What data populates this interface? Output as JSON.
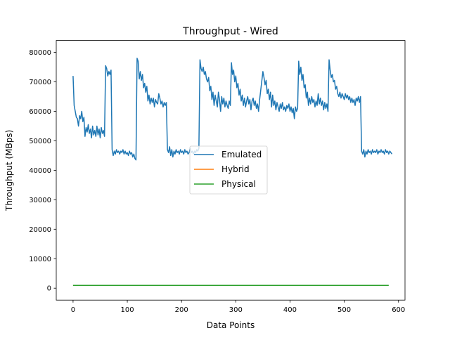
{
  "chart_data": {
    "type": "line",
    "title": "Throughput - Wired",
    "xlabel": "Data Points",
    "ylabel": "Throughput (MBps)",
    "xlim": [
      -31,
      612
    ],
    "ylim": [
      -4050,
      84050
    ],
    "xticks": [
      0,
      100,
      200,
      300,
      400,
      500,
      600
    ],
    "yticks": [
      0,
      10000,
      20000,
      30000,
      40000,
      50000,
      60000,
      70000,
      80000
    ],
    "grid": false,
    "legend_position": "center",
    "series": [
      {
        "name": "Emulated",
        "color": "#1f77b4",
        "points": [
          [
            0,
            72000
          ],
          [
            2,
            62000
          ],
          [
            4,
            60000
          ],
          [
            6,
            58000
          ],
          [
            8,
            57500
          ],
          [
            10,
            55000
          ],
          [
            12,
            58500
          ],
          [
            14,
            57500
          ],
          [
            16,
            60000
          ],
          [
            18,
            56500
          ],
          [
            20,
            58000
          ],
          [
            22,
            51500
          ],
          [
            24,
            54500
          ],
          [
            26,
            53000
          ],
          [
            28,
            55500
          ],
          [
            30,
            52500
          ],
          [
            32,
            54000
          ],
          [
            34,
            51000
          ],
          [
            36,
            55000
          ],
          [
            38,
            52000
          ],
          [
            40,
            53500
          ],
          [
            42,
            51500
          ],
          [
            44,
            55000
          ],
          [
            46,
            52000
          ],
          [
            48,
            54000
          ],
          [
            50,
            51000
          ],
          [
            52,
            54500
          ],
          [
            54,
            52500
          ],
          [
            56,
            53500
          ],
          [
            58,
            51500
          ],
          [
            60,
            75500
          ],
          [
            62,
            74500
          ],
          [
            64,
            72000
          ],
          [
            66,
            73500
          ],
          [
            68,
            72500
          ],
          [
            70,
            74000
          ],
          [
            72,
            47000
          ],
          [
            74,
            45000
          ],
          [
            76,
            46500
          ],
          [
            78,
            45500
          ],
          [
            80,
            47000
          ],
          [
            82,
            46000
          ],
          [
            84,
            46500
          ],
          [
            86,
            45500
          ],
          [
            88,
            46500
          ],
          [
            90,
            46000
          ],
          [
            92,
            47000
          ],
          [
            94,
            45500
          ],
          [
            96,
            46500
          ],
          [
            98,
            45500
          ],
          [
            100,
            46000
          ],
          [
            102,
            45000
          ],
          [
            104,
            46500
          ],
          [
            106,
            45500
          ],
          [
            108,
            46000
          ],
          [
            110,
            44500
          ],
          [
            112,
            45500
          ],
          [
            114,
            44000
          ],
          [
            116,
            43500
          ],
          [
            118,
            78000
          ],
          [
            120,
            77000
          ],
          [
            122,
            71000
          ],
          [
            124,
            73500
          ],
          [
            126,
            70500
          ],
          [
            128,
            72500
          ],
          [
            130,
            68000
          ],
          [
            132,
            69500
          ],
          [
            134,
            66500
          ],
          [
            136,
            68500
          ],
          [
            138,
            63500
          ],
          [
            140,
            65500
          ],
          [
            142,
            62500
          ],
          [
            144,
            64500
          ],
          [
            146,
            63000
          ],
          [
            148,
            64500
          ],
          [
            150,
            61500
          ],
          [
            152,
            64000
          ],
          [
            154,
            63000
          ],
          [
            156,
            62500
          ],
          [
            158,
            66000
          ],
          [
            160,
            64500
          ],
          [
            162,
            62500
          ],
          [
            164,
            63500
          ],
          [
            166,
            61500
          ],
          [
            168,
            63000
          ],
          [
            170,
            62000
          ],
          [
            172,
            63000
          ],
          [
            174,
            47000
          ],
          [
            176,
            46000
          ],
          [
            178,
            48000
          ],
          [
            180,
            45000
          ],
          [
            182,
            47000
          ],
          [
            184,
            44500
          ],
          [
            186,
            46500
          ],
          [
            188,
            45500
          ],
          [
            190,
            47000
          ],
          [
            192,
            46000
          ],
          [
            194,
            46500
          ],
          [
            196,
            45500
          ],
          [
            198,
            47000
          ],
          [
            200,
            46000
          ],
          [
            202,
            46500
          ],
          [
            204,
            45500
          ],
          [
            206,
            47000
          ],
          [
            208,
            46000
          ],
          [
            210,
            46500
          ],
          [
            212,
            45500
          ],
          [
            214,
            46000
          ],
          [
            216,
            47500
          ],
          [
            218,
            46000
          ],
          [
            220,
            46500
          ],
          [
            222,
            45500
          ],
          [
            224,
            46500
          ],
          [
            226,
            46000
          ],
          [
            228,
            47000
          ],
          [
            230,
            46500
          ],
          [
            232,
            47500
          ],
          [
            234,
            77500
          ],
          [
            236,
            74500
          ],
          [
            238,
            73500
          ],
          [
            240,
            75000
          ],
          [
            242,
            72500
          ],
          [
            244,
            73500
          ],
          [
            246,
            71000
          ],
          [
            248,
            70000
          ],
          [
            250,
            71500
          ],
          [
            252,
            67000
          ],
          [
            254,
            68500
          ],
          [
            256,
            64000
          ],
          [
            258,
            66500
          ],
          [
            260,
            62000
          ],
          [
            262,
            65500
          ],
          [
            264,
            63500
          ],
          [
            266,
            61500
          ],
          [
            268,
            66500
          ],
          [
            270,
            64000
          ],
          [
            272,
            60000
          ],
          [
            274,
            65000
          ],
          [
            276,
            62500
          ],
          [
            278,
            64500
          ],
          [
            280,
            61500
          ],
          [
            282,
            63500
          ],
          [
            284,
            62000
          ],
          [
            286,
            61000
          ],
          [
            288,
            63500
          ],
          [
            290,
            62000
          ],
          [
            292,
            76500
          ],
          [
            294,
            72500
          ],
          [
            296,
            74000
          ],
          [
            298,
            70000
          ],
          [
            300,
            72000
          ],
          [
            302,
            68000
          ],
          [
            304,
            69500
          ],
          [
            306,
            65500
          ],
          [
            308,
            67500
          ],
          [
            310,
            63500
          ],
          [
            312,
            65500
          ],
          [
            314,
            62000
          ],
          [
            316,
            64500
          ],
          [
            318,
            61500
          ],
          [
            320,
            63500
          ],
          [
            322,
            65000
          ],
          [
            324,
            62500
          ],
          [
            326,
            64000
          ],
          [
            328,
            60500
          ],
          [
            330,
            63500
          ],
          [
            332,
            64500
          ],
          [
            334,
            62000
          ],
          [
            336,
            63500
          ],
          [
            338,
            61000
          ],
          [
            340,
            62500
          ],
          [
            342,
            60000
          ],
          [
            344,
            64000
          ],
          [
            350,
            73500
          ],
          [
            352,
            71500
          ],
          [
            354,
            69000
          ],
          [
            356,
            70500
          ],
          [
            358,
            66000
          ],
          [
            360,
            67500
          ],
          [
            362,
            64000
          ],
          [
            364,
            66500
          ],
          [
            366,
            61500
          ],
          [
            368,
            65500
          ],
          [
            370,
            62000
          ],
          [
            372,
            63500
          ],
          [
            374,
            60500
          ],
          [
            376,
            63000
          ],
          [
            378,
            61500
          ],
          [
            380,
            60000
          ],
          [
            382,
            62500
          ],
          [
            384,
            61000
          ],
          [
            386,
            63000
          ],
          [
            388,
            60500
          ],
          [
            390,
            61500
          ],
          [
            392,
            60000
          ],
          [
            394,
            62000
          ],
          [
            396,
            61000
          ],
          [
            398,
            62500
          ],
          [
            400,
            60000
          ],
          [
            402,
            61500
          ],
          [
            404,
            59500
          ],
          [
            406,
            61000
          ],
          [
            408,
            57500
          ],
          [
            410,
            61500
          ],
          [
            412,
            60000
          ],
          [
            414,
            61000
          ],
          [
            416,
            77000
          ],
          [
            418,
            72500
          ],
          [
            420,
            75000
          ],
          [
            422,
            70500
          ],
          [
            424,
            72500
          ],
          [
            426,
            68000
          ],
          [
            428,
            69000
          ],
          [
            430,
            64500
          ],
          [
            432,
            66500
          ],
          [
            434,
            62000
          ],
          [
            436,
            64500
          ],
          [
            438,
            62500
          ],
          [
            440,
            65000
          ],
          [
            442,
            63000
          ],
          [
            444,
            64000
          ],
          [
            446,
            61500
          ],
          [
            448,
            63500
          ],
          [
            450,
            62000
          ],
          [
            452,
            66000
          ],
          [
            454,
            62500
          ],
          [
            456,
            64500
          ],
          [
            458,
            62000
          ],
          [
            460,
            63500
          ],
          [
            462,
            60500
          ],
          [
            464,
            63000
          ],
          [
            466,
            61000
          ],
          [
            468,
            62500
          ],
          [
            470,
            60000
          ],
          [
            472,
            77500
          ],
          [
            474,
            74000
          ],
          [
            476,
            71500
          ],
          [
            478,
            72500
          ],
          [
            480,
            70000
          ],
          [
            482,
            70500
          ],
          [
            484,
            67500
          ],
          [
            486,
            68500
          ],
          [
            488,
            66000
          ],
          [
            490,
            65000
          ],
          [
            492,
            66500
          ],
          [
            494,
            64500
          ],
          [
            496,
            66000
          ],
          [
            498,
            65000
          ],
          [
            500,
            64000
          ],
          [
            502,
            66000
          ],
          [
            504,
            64500
          ],
          [
            506,
            65500
          ],
          [
            508,
            64000
          ],
          [
            510,
            65000
          ],
          [
            512,
            63000
          ],
          [
            514,
            64500
          ],
          [
            516,
            63000
          ],
          [
            518,
            64000
          ],
          [
            520,
            62000
          ],
          [
            522,
            64500
          ],
          [
            524,
            63500
          ],
          [
            526,
            65000
          ],
          [
            528,
            63000
          ],
          [
            530,
            65000
          ],
          [
            532,
            46500
          ],
          [
            534,
            45500
          ],
          [
            536,
            47000
          ],
          [
            538,
            44500
          ],
          [
            540,
            46500
          ],
          [
            542,
            45500
          ],
          [
            544,
            47000
          ],
          [
            546,
            46000
          ],
          [
            548,
            46500
          ],
          [
            550,
            45500
          ],
          [
            552,
            47000
          ],
          [
            554,
            46000
          ],
          [
            556,
            46500
          ],
          [
            558,
            46000
          ],
          [
            560,
            47000
          ],
          [
            562,
            45500
          ],
          [
            564,
            46500
          ],
          [
            566,
            46000
          ],
          [
            568,
            47000
          ],
          [
            570,
            46000
          ],
          [
            572,
            46500
          ],
          [
            574,
            45500
          ],
          [
            576,
            47000
          ],
          [
            578,
            46000
          ],
          [
            580,
            46500
          ],
          [
            582,
            45500
          ],
          [
            584,
            46500
          ],
          [
            586,
            46000
          ],
          [
            588,
            45500
          ]
        ]
      },
      {
        "name": "Hybrid",
        "color": "#ff7f0e",
        "points": [
          [
            0,
            950
          ],
          [
            350,
            950
          ]
        ]
      },
      {
        "name": "Physical",
        "color": "#2ca02c",
        "points": [
          [
            0,
            950
          ],
          [
            582,
            950
          ]
        ]
      }
    ]
  }
}
